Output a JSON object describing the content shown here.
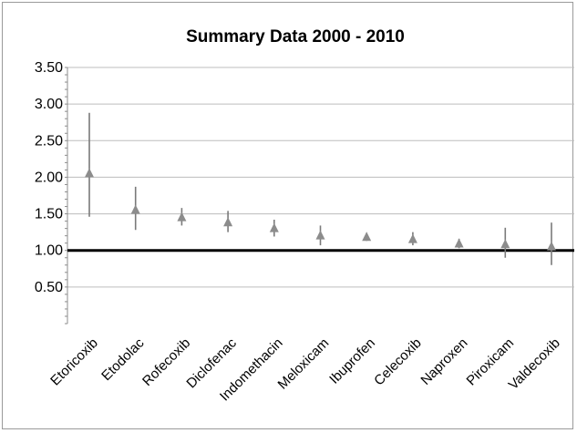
{
  "chart_data": {
    "type": "scatter",
    "title": "Summary Data 2000 - 2010",
    "xlabel": "",
    "ylabel": "",
    "ylim": [
      0,
      3.5
    ],
    "yticks": [
      "3.50",
      "3.00",
      "2.50",
      "2.00",
      "1.50",
      "1.00",
      "0.50"
    ],
    "grid": true,
    "legend": "none",
    "reference_line": 1.0,
    "categories": [
      "Etoricoxib",
      "Etodolac",
      "Rofecoxib",
      "Diclofenac",
      "Indomethacin",
      "Meloxicam",
      "Ibuprofen",
      "Celecoxib",
      "Naproxen",
      "Piroxicam",
      "Valdecoxib"
    ],
    "series": [
      {
        "values": [
          2.05,
          1.55,
          1.45,
          1.38,
          1.3,
          1.2,
          1.18,
          1.15,
          1.09,
          1.08,
          1.05
        ],
        "lower": [
          1.46,
          1.28,
          1.34,
          1.25,
          1.19,
          1.07,
          1.13,
          1.07,
          1.03,
          0.9,
          0.8
        ],
        "upper": [
          2.88,
          1.87,
          1.58,
          1.54,
          1.42,
          1.34,
          1.24,
          1.25,
          1.16,
          1.31,
          1.38
        ]
      }
    ],
    "colors": {
      "marker": "#8c8c8c",
      "errorbar": "#7a7a7a",
      "grid": "#bdbdbd",
      "reference": "#000000"
    }
  }
}
